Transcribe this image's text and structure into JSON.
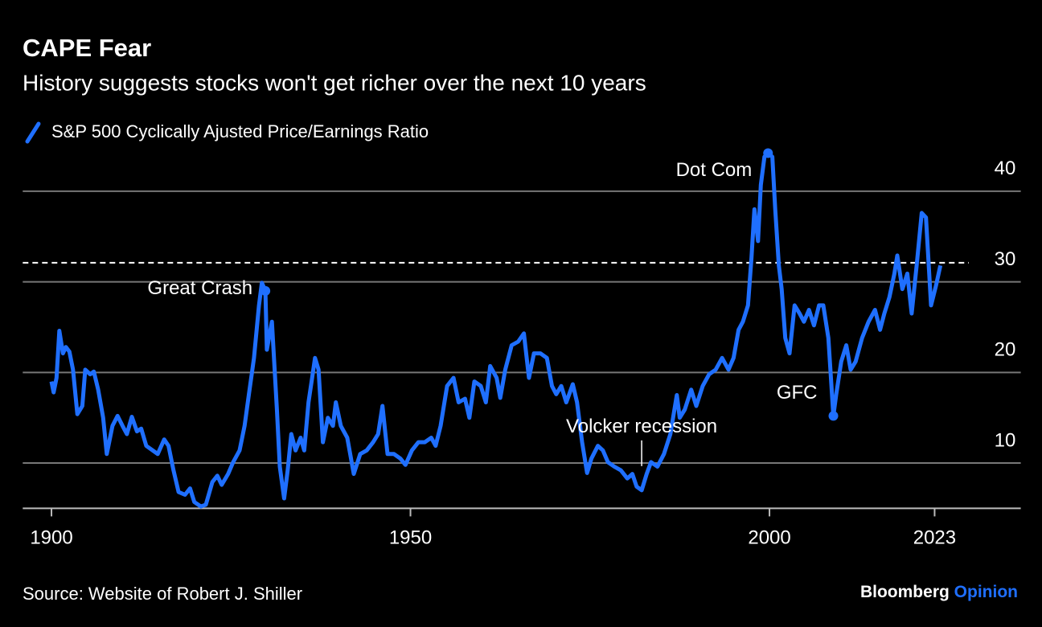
{
  "chart_data": {
    "type": "line",
    "title": "CAPE Fear",
    "subtitle": "History suggests stocks won't get richer over the next 10 years",
    "source": "Source: Website of Robert J. Shiller",
    "brand": [
      "Bloomberg",
      "Opinion"
    ],
    "xlim": [
      1896,
      2035
    ],
    "ylim": [
      5,
      45
    ],
    "xticks": [
      1900,
      1950,
      2000,
      2023
    ],
    "yticks": [
      10,
      20,
      30,
      40
    ],
    "grid": true,
    "reference_line": 32.1,
    "annotations": [
      {
        "label": "Great Crash",
        "x": 1929.8,
        "y": 29.0,
        "marker": true
      },
      {
        "label": "Dot Com",
        "x": 1999.8,
        "y": 44.2,
        "marker": true
      },
      {
        "label": "GFC",
        "x": 2008.9,
        "y": 15.2,
        "marker": true
      },
      {
        "label": "Volcker recession",
        "x": 1982.2,
        "y": 7.0,
        "marker": false
      }
    ],
    "series": [
      {
        "name": "S&P 500 Cyclically Ajusted Price/Earnings Ratio",
        "color": "#1f6fff",
        "x": [
          1900,
          1900.3,
          1900.7,
          1901.1,
          1901.6,
          1902,
          1902.5,
          1903,
          1903.6,
          1904.3,
          1904.7,
          1905.4,
          1905.9,
          1906.5,
          1907.2,
          1907.7,
          1908.5,
          1909.2,
          1909.9,
          1910.5,
          1911.2,
          1911.9,
          1912.5,
          1913.2,
          1914.1,
          1914.8,
          1915.7,
          1916.3,
          1917,
          1917.7,
          1918.6,
          1919.3,
          1919.9,
          1920.8,
          1921.5,
          1922.4,
          1923.1,
          1923.7,
          1924.6,
          1925.3,
          1926.2,
          1926.9,
          1927.5,
          1928.2,
          1928.9,
          1929.3,
          1929.8,
          1930,
          1930.7,
          1931.4,
          1931.8,
          1932.4,
          1932.9,
          1933.4,
          1934,
          1934.7,
          1935.2,
          1935.8,
          1936.3,
          1936.7,
          1937.2,
          1937.8,
          1938.5,
          1939.2,
          1939.6,
          1940.3,
          1941.2,
          1942.1,
          1943,
          1943.9,
          1944.8,
          1945.5,
          1946.1,
          1946.8,
          1947.7,
          1948.6,
          1949.3,
          1950.2,
          1951.1,
          1952,
          1952.9,
          1953.5,
          1954.2,
          1955.1,
          1956,
          1956.7,
          1957.6,
          1958.2,
          1958.9,
          1959.8,
          1960.5,
          1961.1,
          1962,
          1962.5,
          1963.2,
          1964.1,
          1965,
          1965.8,
          1966.5,
          1967.2,
          1968.1,
          1969,
          1969.7,
          1970.3,
          1971,
          1971.7,
          1972.6,
          1973.2,
          1973.9,
          1974.6,
          1975.2,
          1976.1,
          1976.8,
          1977.5,
          1978.4,
          1979.3,
          1980.2,
          1980.9,
          1981.5,
          1982.2,
          1982.9,
          1983.5,
          1984.4,
          1985.3,
          1986.2,
          1987.1,
          1987.5,
          1988.2,
          1989.1,
          1989.8,
          1990.7,
          1991.6,
          1992.5,
          1993.4,
          1994.3,
          1995,
          1995.7,
          1996.3,
          1997,
          1997.5,
          1997.9,
          1998.4,
          1998.8,
          1999.3,
          1999.8,
          2000.4,
          2000.8,
          2001.3,
          2001.7,
          2002.2,
          2002.8,
          2003.5,
          2004.2,
          2004.8,
          2005.5,
          2006.2,
          2006.9,
          2007.5,
          2008.2,
          2008.9,
          2009.3,
          2010,
          2010.7,
          2011.3,
          2012,
          2012.9,
          2013.8,
          2014.7,
          2015.4,
          2016,
          2016.7,
          2017.4,
          2017.8,
          2018.5,
          2019.2,
          2019.8,
          2020.5,
          2021.2,
          2021.8,
          2022.5,
          2023.2,
          2023.8
        ],
        "values": [
          19.0,
          17.8,
          19.4,
          24.6,
          22.1,
          22.8,
          22.3,
          20.3,
          15.4,
          16.3,
          20.3,
          19.8,
          20.1,
          18.1,
          15.0,
          11.0,
          14.1,
          15.2,
          14.1,
          13.2,
          15.1,
          13.5,
          13.8,
          11.9,
          11.4,
          11.0,
          12.6,
          11.9,
          9.2,
          6.8,
          6.5,
          7.2,
          5.7,
          5.2,
          5.4,
          7.9,
          8.6,
          7.6,
          8.8,
          10.1,
          11.4,
          14.1,
          17.6,
          21.6,
          27.4,
          29.9,
          29.0,
          22.5,
          25.6,
          15.9,
          9.6,
          6.1,
          9.2,
          13.2,
          11.4,
          12.8,
          11.4,
          16.7,
          19.4,
          21.6,
          20.3,
          12.3,
          15.0,
          14.1,
          16.7,
          14.1,
          12.8,
          8.8,
          11.0,
          11.4,
          12.3,
          13.2,
          16.3,
          11.0,
          11.0,
          10.5,
          9.8,
          11.4,
          12.3,
          12.3,
          12.8,
          11.9,
          14.1,
          18.5,
          19.4,
          16.7,
          17.1,
          15.0,
          19.0,
          18.5,
          16.7,
          20.7,
          19.4,
          17.2,
          20.3,
          23.0,
          23.4,
          24.3,
          19.4,
          22.1,
          22.1,
          21.6,
          18.5,
          17.6,
          18.5,
          16.7,
          18.7,
          16.7,
          12.3,
          8.9,
          10.5,
          11.9,
          11.4,
          10.1,
          9.6,
          9.2,
          8.3,
          8.8,
          7.4,
          7.0,
          8.8,
          10.1,
          9.6,
          11.0,
          13.2,
          17.5,
          15.0,
          15.9,
          18.1,
          16.3,
          18.5,
          19.8,
          20.3,
          21.6,
          20.3,
          21.6,
          24.7,
          25.6,
          27.4,
          32.7,
          38.0,
          34.5,
          40.7,
          43.8,
          44.2,
          43.8,
          38.0,
          31.8,
          29.2,
          23.8,
          22.1,
          27.4,
          26.5,
          25.6,
          26.9,
          25.2,
          27.4,
          27.4,
          23.8,
          15.2,
          17.6,
          21.2,
          23.0,
          20.3,
          21.2,
          23.8,
          25.6,
          26.9,
          24.7,
          26.5,
          28.3,
          30.9,
          32.9,
          29.2,
          30.9,
          26.5,
          31.8,
          37.6,
          37.1,
          27.4,
          29.6,
          31.8
        ]
      }
    ]
  }
}
